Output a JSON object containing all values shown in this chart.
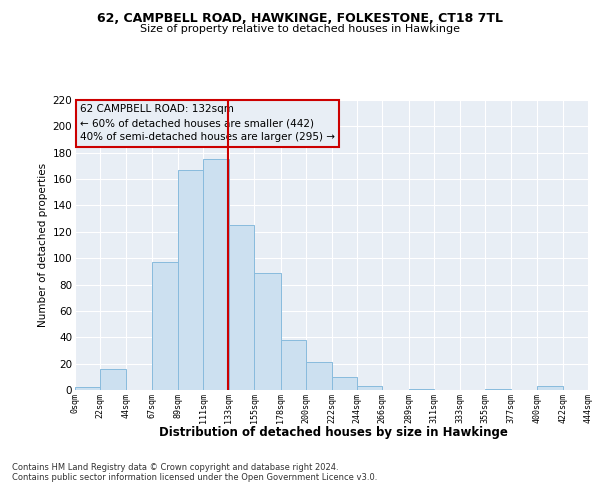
{
  "title": "62, CAMPBELL ROAD, HAWKINGE, FOLKESTONE, CT18 7TL",
  "subtitle": "Size of property relative to detached houses in Hawkinge",
  "xlabel": "Distribution of detached houses by size in Hawkinge",
  "ylabel": "Number of detached properties",
  "bar_color": "#cce0f0",
  "bar_edge_color": "#88bbdd",
  "bin_edges": [
    0,
    22,
    44,
    67,
    89,
    111,
    133,
    155,
    178,
    200,
    222,
    244,
    266,
    289,
    311,
    333,
    355,
    377,
    400,
    422,
    444
  ],
  "bar_heights": [
    2,
    16,
    0,
    97,
    167,
    175,
    125,
    89,
    38,
    21,
    10,
    3,
    0,
    1,
    0,
    0,
    1,
    0,
    3,
    0
  ],
  "tick_labels": [
    "0sqm",
    "22sqm",
    "44sqm",
    "67sqm",
    "89sqm",
    "111sqm",
    "133sqm",
    "155sqm",
    "178sqm",
    "200sqm",
    "222sqm",
    "244sqm",
    "266sqm",
    "289sqm",
    "311sqm",
    "333sqm",
    "355sqm",
    "377sqm",
    "400sqm",
    "422sqm",
    "444sqm"
  ],
  "property_value": 132,
  "annotation_title": "62 CAMPBELL ROAD: 132sqm",
  "annotation_line1": "← 60% of detached houses are smaller (442)",
  "annotation_line2": "40% of semi-detached houses are larger (295) →",
  "vline_color": "#cc0000",
  "annotation_box_edgecolor": "#cc0000",
  "ylim": [
    0,
    220
  ],
  "yticks": [
    0,
    20,
    40,
    60,
    80,
    100,
    120,
    140,
    160,
    180,
    200,
    220
  ],
  "footnote1": "Contains HM Land Registry data © Crown copyright and database right 2024.",
  "footnote2": "Contains public sector information licensed under the Open Government Licence v3.0.",
  "fig_bg_color": "#ffffff",
  "plot_bg_color": "#e8eef5",
  "grid_color": "#ffffff"
}
